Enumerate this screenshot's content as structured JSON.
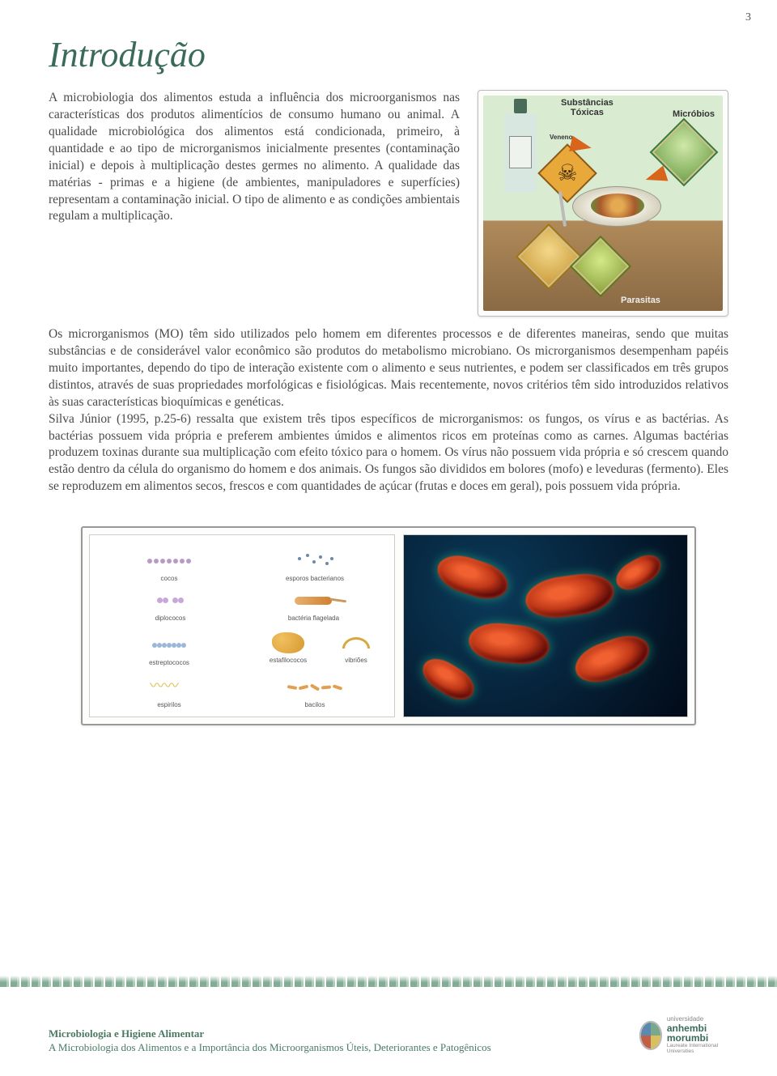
{
  "page_number": "3",
  "heading": "Introdução",
  "intro_paragraph": "A microbiologia dos alimentos estuda a influência dos microorganismos nas características dos produtos alimentícios de consumo humano ou animal. A qualidade microbiológica dos alimentos está condicionada, primeiro, à quantidade e ao tipo de microrganismos inicialmente presentes (contaminação inicial) e depois à multiplicação destes germes no alimento. A qualidade das matérias - primas e a higiene (de ambientes, manipuladores e superfícies) representam a contaminação inicial. O tipo de alimento e as condições ambientais regulam a multiplicação.",
  "body_paragraph": "Os microrganismos (MO) têm sido utilizados pelo homem em diferentes processos e de diferentes maneiras, sendo que muitas substâncias e de considerável valor econômico são produtos do metabolismo microbiano. Os microrganismos desempenham papéis muito importantes, dependo do tipo de interação existente com o alimento e seus nutrientes, e podem ser classificados em três grupos distintos, através de suas propriedades morfológicas e fisiológicas. Mais recentemente, novos critérios têm sido introduzidos relativos às suas características bioquímicas e genéticas.\nSilva Júnior (1995, p.25-6) ressalta que existem três tipos específicos de microrganismos: os fungos, os vírus e as bactérias. As bactérias possuem vida própria e preferem ambientes úmidos e alimentos ricos em proteínas como as carnes. Algumas bactérias produzem toxinas durante sua multiplicação com efeito tóxico para o homem. Os vírus não possuem vida própria e só crescem quando estão dentro da célula do organismo do homem e dos animais. Os fungos são divididos em bolores (mofo) e leveduras (fermento). Eles se reproduzem em alimentos secos, frescos e com quantidades de açúcar (frutas e doces em geral), pois possuem vida própria.",
  "figure1": {
    "labels": {
      "toxicas": "Substâncias\nTóxicas",
      "microbios": "Micróbios",
      "parasitas": "Parasitas",
      "veneno": "Veneno"
    }
  },
  "figure2_left": {
    "cocos": "cocos",
    "diplococos": "diplococos",
    "esporos": "esporos bacterianos",
    "estreptococos": "estreptococos",
    "estafilococos": "estafilococos",
    "bacteria_flagelada": "bactéria flagelada",
    "vibrioes": "vibriões",
    "espirilos": "espirilos",
    "bacilos": "bacilos"
  },
  "footer": {
    "line1": "Microbiologia e Higiene Alimentar",
    "line2": "A Microbiologia dos Alimentos e a Importância dos Microorganismos Úteis, Deteriorantes e Patogênicos"
  },
  "logo": {
    "universidade": "universidade",
    "anhembi": "anhembi",
    "morumbi": "morumbi",
    "sub": "Laureate International Universities"
  },
  "colors": {
    "heading": "#3a6b5a",
    "text": "#4a4a4a",
    "footer_text": "#4a7a64"
  }
}
